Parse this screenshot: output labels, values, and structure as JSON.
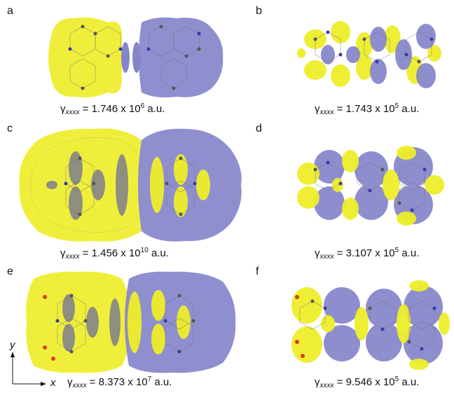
{
  "colors": {
    "yellow": "#eeee2a",
    "blue": "#8585cc",
    "grid": "#6e6e6e",
    "atom": "#555555",
    "oxygen": "#d8401c",
    "nitrogen": "#3a3aa0"
  },
  "panels": [
    {
      "label": "a",
      "gamma": "γ",
      "sub": "xxxx",
      "text": " = 1.746 x 10",
      "exp": "6",
      "unit": " a.u."
    },
    {
      "label": "b",
      "gamma": "γ",
      "sub": "xxxx",
      "text": " = 1.743 x 10",
      "exp": "5",
      "unit": " a.u."
    },
    {
      "label": "c",
      "gamma": "γ",
      "sub": "xxxx",
      "text": " = 1.456 x 10",
      "exp": "10",
      "unit": " a.u."
    },
    {
      "label": "d",
      "gamma": "γ",
      "sub": "xxxx",
      "text": " = 3.107 x 10",
      "exp": "5",
      "unit": " a.u."
    },
    {
      "label": "e",
      "gamma": "γ",
      "sub": "xxxx",
      "text": " = 8.373 x 10",
      "exp": "7",
      "unit": " a.u."
    },
    {
      "label": "f",
      "gamma": "γ",
      "sub": "xxxx",
      "text": " = 9.546 x 10",
      "exp": "5",
      "unit": " a.u."
    }
  ],
  "axes": {
    "x": "x",
    "y": "y"
  }
}
